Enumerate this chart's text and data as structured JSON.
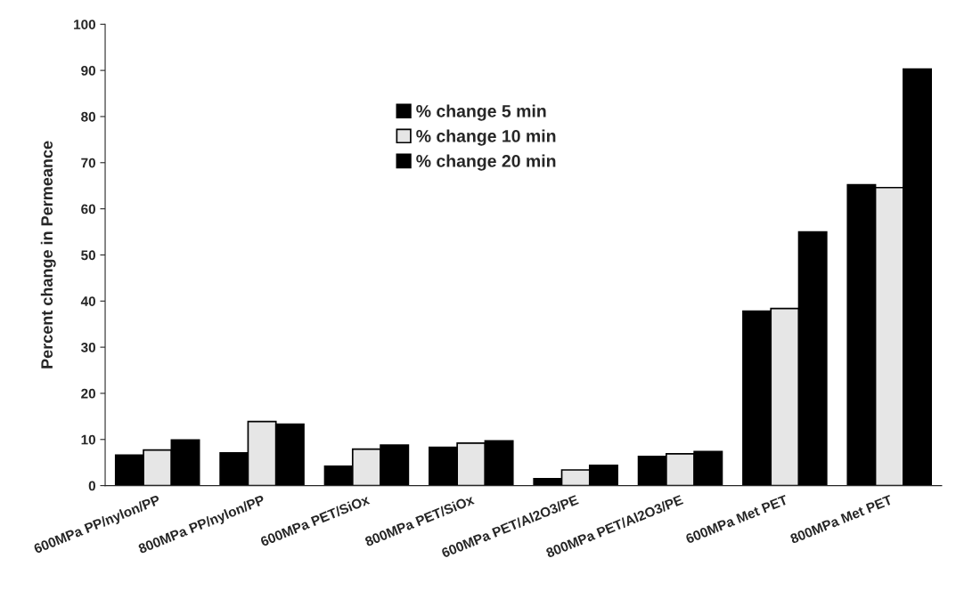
{
  "chart_data": {
    "type": "bar",
    "ylabel": "Percent change in Permeance",
    "categories": [
      "600MPa PP/nylon/PP",
      "800MPa PP/nylon/PP",
      "600MPa PET/SiOx",
      "800MPa PET/SiOx",
      "600MPa PET/Al2O3/PE",
      "800MPa PET/Al2O3/PE",
      "600MPa Met PET",
      "800MPa Met PET"
    ],
    "series": [
      {
        "name": "% change 5 min",
        "color": "#000000",
        "values": [
          6.6,
          7.1,
          4.2,
          8.3,
          1.5,
          6.3,
          37.8,
          65.2
        ]
      },
      {
        "name": "% change 10 min",
        "color": "#e6e6e6",
        "values": [
          7.7,
          13.9,
          7.9,
          9.2,
          3.4,
          6.9,
          38.4,
          64.6
        ]
      },
      {
        "name": "% change 20 min",
        "color": "#000000",
        "values": [
          9.9,
          13.3,
          8.8,
          9.7,
          4.4,
          7.4,
          55.0,
          90.3
        ]
      }
    ],
    "ylim": [
      0,
      100
    ],
    "yticks": [
      0,
      10,
      20,
      30,
      40,
      50,
      60,
      70,
      80,
      90,
      100
    ],
    "grid": false,
    "legend": "top"
  }
}
